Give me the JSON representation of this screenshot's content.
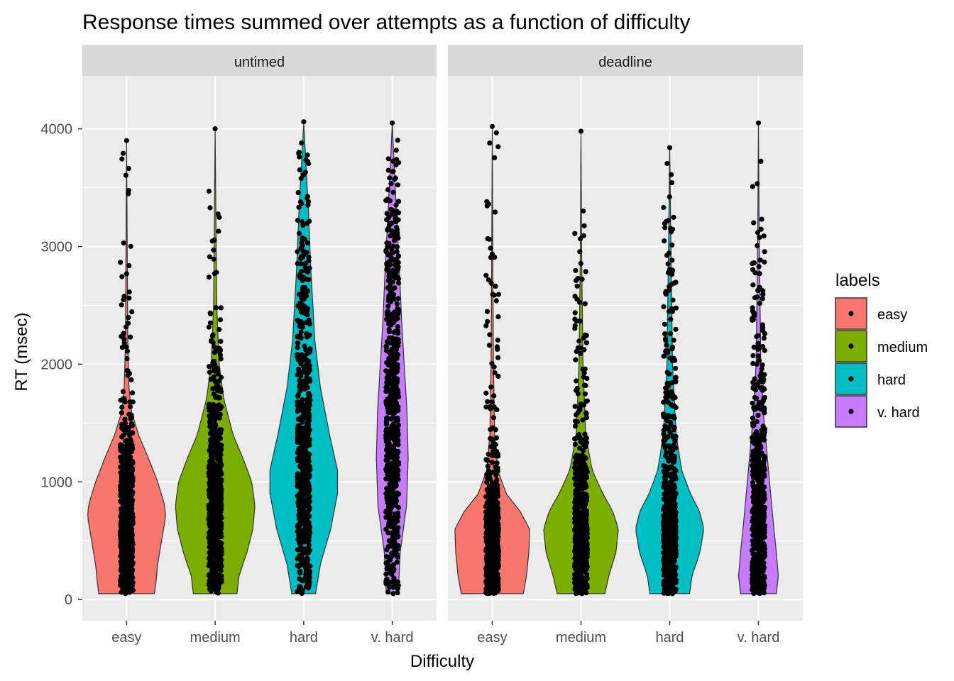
{
  "chart_data": {
    "type": "violin",
    "title": "Response times summed over attempts as a function of difficulty",
    "xlabel": "Difficulty",
    "ylabel": "RT (msec)",
    "ylim": [
      -180,
      4450
    ],
    "yticks": [
      0,
      1000,
      2000,
      3000,
      4000
    ],
    "categories": [
      "easy",
      "medium",
      "hard",
      "v. hard"
    ],
    "grid": true,
    "legend": {
      "title": "labels",
      "position": "right",
      "entries": [
        "easy",
        "medium",
        "hard",
        "v. hard"
      ]
    },
    "colors": {
      "easy": "#F8766D",
      "medium": "#7CAE00",
      "hard": "#00BFC4",
      "v. hard": "#C77CFF",
      "panel_bg": "#EBEBEB",
      "strip_bg": "#D9D9D9",
      "grid": "#FFFFFF",
      "points": "#000000"
    },
    "panels": [
      {
        "name": "untimed",
        "violins": [
          {
            "category": "easy",
            "min": 50,
            "max": 3900,
            "density": [
              [
                50,
                0.7
              ],
              [
                150,
                0.74
              ],
              [
                300,
                0.78
              ],
              [
                500,
                0.88
              ],
              [
                700,
                0.98
              ],
              [
                800,
                0.96
              ],
              [
                1000,
                0.78
              ],
              [
                1200,
                0.55
              ],
              [
                1400,
                0.3
              ],
              [
                1600,
                0.12
              ],
              [
                1800,
                0.06
              ],
              [
                2200,
                0.03
              ],
              [
                3000,
                0.015
              ],
              [
                3900,
                0.0
              ]
            ]
          },
          {
            "category": "medium",
            "min": 50,
            "max": 4000,
            "density": [
              [
                50,
                0.55
              ],
              [
                200,
                0.6
              ],
              [
                400,
                0.8
              ],
              [
                600,
                0.95
              ],
              [
                800,
                1.0
              ],
              [
                1000,
                0.92
              ],
              [
                1200,
                0.7
              ],
              [
                1400,
                0.45
              ],
              [
                1700,
                0.22
              ],
              [
                2000,
                0.1
              ],
              [
                2500,
                0.04
              ],
              [
                3200,
                0.02
              ],
              [
                4000,
                0.0
              ]
            ]
          },
          {
            "category": "hard",
            "min": 50,
            "max": 4050,
            "density": [
              [
                50,
                0.3
              ],
              [
                300,
                0.42
              ],
              [
                600,
                0.68
              ],
              [
                900,
                0.85
              ],
              [
                1100,
                0.85
              ],
              [
                1400,
                0.65
              ],
              [
                1800,
                0.42
              ],
              [
                2200,
                0.28
              ],
              [
                2800,
                0.18
              ],
              [
                3300,
                0.12
              ],
              [
                4050,
                0.0
              ]
            ]
          },
          {
            "category": "v. hard",
            "min": 50,
            "max": 4050,
            "density": [
              [
                50,
                0.15
              ],
              [
                400,
                0.2
              ],
              [
                800,
                0.36
              ],
              [
                1200,
                0.4
              ],
              [
                1600,
                0.37
              ],
              [
                2000,
                0.3
              ],
              [
                2400,
                0.23
              ],
              [
                2800,
                0.18
              ],
              [
                3200,
                0.12
              ],
              [
                3600,
                0.06
              ],
              [
                4050,
                0.0
              ]
            ]
          }
        ],
        "points_max": [
          3900,
          4000,
          4060,
          4050
        ]
      },
      {
        "name": "deadline",
        "violins": [
          {
            "category": "easy",
            "min": 50,
            "max": 4020,
            "density": [
              [
                50,
                0.78
              ],
              [
                200,
                0.86
              ],
              [
                400,
                0.92
              ],
              [
                600,
                0.94
              ],
              [
                750,
                0.7
              ],
              [
                900,
                0.35
              ],
              [
                1100,
                0.14
              ],
              [
                1400,
                0.06
              ],
              [
                2000,
                0.03
              ],
              [
                3000,
                0.012
              ],
              [
                4020,
                0.0
              ]
            ]
          },
          {
            "category": "medium",
            "min": 50,
            "max": 3980,
            "density": [
              [
                50,
                0.6
              ],
              [
                200,
                0.7
              ],
              [
                400,
                0.88
              ],
              [
                600,
                0.94
              ],
              [
                750,
                0.8
              ],
              [
                900,
                0.55
              ],
              [
                1100,
                0.28
              ],
              [
                1400,
                0.12
              ],
              [
                2000,
                0.05
              ],
              [
                3000,
                0.015
              ],
              [
                3980,
                0.0
              ]
            ]
          },
          {
            "category": "hard",
            "min": 50,
            "max": 3840,
            "density": [
              [
                50,
                0.5
              ],
              [
                200,
                0.56
              ],
              [
                400,
                0.76
              ],
              [
                600,
                0.86
              ],
              [
                750,
                0.75
              ],
              [
                900,
                0.52
              ],
              [
                1100,
                0.3
              ],
              [
                1400,
                0.16
              ],
              [
                2000,
                0.07
              ],
              [
                3000,
                0.03
              ],
              [
                3840,
                0.0
              ]
            ]
          },
          {
            "category": "v. hard",
            "min": 50,
            "max": 4050,
            "density": [
              [
                50,
                0.45
              ],
              [
                200,
                0.5
              ],
              [
                400,
                0.45
              ],
              [
                700,
                0.36
              ],
              [
                1000,
                0.28
              ],
              [
                1300,
                0.2
              ],
              [
                1600,
                0.12
              ],
              [
                2000,
                0.06
              ],
              [
                3000,
                0.02
              ],
              [
                4050,
                0.0
              ]
            ]
          }
        ],
        "points_max": [
          4020,
          3980,
          3840,
          4050
        ]
      }
    ]
  }
}
